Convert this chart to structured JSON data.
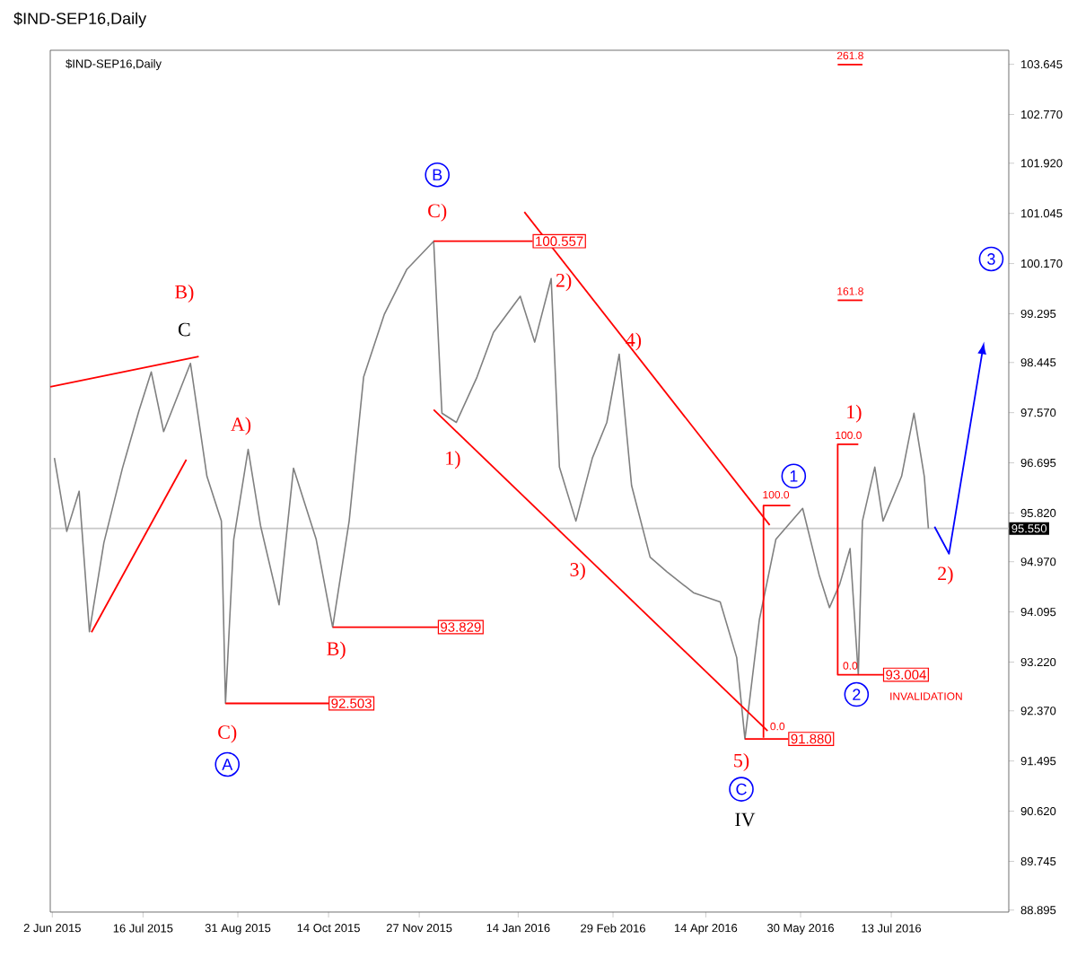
{
  "chart_data": {
    "type": "line",
    "title": "$IND-SEP16,Daily",
    "subtitle": "$IND-SEP16,Daily",
    "xlim": [
      "2015-06-01",
      "2016-09-08"
    ],
    "ylim": [
      88.86,
      103.89
    ],
    "xticks": [
      {
        "value": "2015-06-02",
        "label": "2 Jun 2015"
      },
      {
        "value": "2015-07-16",
        "label": "16 Jul 2015"
      },
      {
        "value": "2015-08-31",
        "label": "31 Aug 2015"
      },
      {
        "value": "2015-10-14",
        "label": "14 Oct 2015"
      },
      {
        "value": "2015-11-27",
        "label": "27 Nov 2015"
      },
      {
        "value": "2016-01-14",
        "label": "14 Jan 2016"
      },
      {
        "value": "2016-02-29",
        "label": "29 Feb 2016"
      },
      {
        "value": "2016-04-14",
        "label": "14 Apr 2016"
      },
      {
        "value": "2016-05-30",
        "label": "30 May 2016"
      },
      {
        "value": "2016-07-13",
        "label": "13 Jul 2016"
      }
    ],
    "yticks": [
      {
        "value": 103.645,
        "label": "103.645"
      },
      {
        "value": 102.77,
        "label": "102.770"
      },
      {
        "value": 101.92,
        "label": "101.920"
      },
      {
        "value": 101.045,
        "label": "101.045"
      },
      {
        "value": 100.17,
        "label": "100.170"
      },
      {
        "value": 99.295,
        "label": "99.295"
      },
      {
        "value": 98.445,
        "label": "98.445"
      },
      {
        "value": 97.57,
        "label": "97.570"
      },
      {
        "value": 96.695,
        "label": "96.695"
      },
      {
        "value": 95.82,
        "label": "95.820"
      },
      {
        "value": 94.97,
        "label": "94.970"
      },
      {
        "value": 94.095,
        "label": "94.095"
      },
      {
        "value": 93.22,
        "label": "93.220"
      },
      {
        "value": 92.37,
        "label": "92.370"
      },
      {
        "value": 91.495,
        "label": "91.495"
      },
      {
        "value": 90.62,
        "label": "90.620"
      },
      {
        "value": 89.745,
        "label": "89.745"
      },
      {
        "value": 88.895,
        "label": "88.895"
      }
    ],
    "ref_lines": [
      {
        "axis": "y",
        "value": 95.55,
        "label": "95.550",
        "color": "#c8c8c8"
      }
    ],
    "series": [
      {
        "color": "#808080",
        "x": [
          "2015-06-03",
          "2015-06-09",
          "2015-06-15",
          "2015-06-20",
          "2015-06-27",
          "2015-07-06",
          "2015-07-14",
          "2015-07-20",
          "2015-07-26",
          "2015-08-08",
          "2015-08-16",
          "2015-08-23",
          "2015-08-25",
          "2015-08-29",
          "2015-09-05",
          "2015-09-11",
          "2015-09-20",
          "2015-09-27",
          "2015-10-08",
          "2015-10-16",
          "2015-10-24",
          "2015-10-31",
          "2015-11-10",
          "2015-11-21",
          "2015-12-04",
          "2015-12-08",
          "2015-12-15",
          "2015-12-25",
          "2016-01-02",
          "2016-01-15",
          "2016-01-22",
          "2016-01-30",
          "2016-02-03",
          "2016-02-11",
          "2016-02-19",
          "2016-02-26",
          "2016-03-03",
          "2016-03-09",
          "2016-03-18",
          "2016-03-26",
          "2016-04-08",
          "2016-04-21",
          "2016-04-29",
          "2016-05-03",
          "2016-05-10",
          "2016-05-18",
          "2016-05-31",
          "2016-06-08",
          "2016-06-13",
          "2016-06-18",
          "2016-06-23",
          "2016-06-27",
          "2016-06-29",
          "2016-07-05",
          "2016-07-09",
          "2016-07-18",
          "2016-07-24",
          "2016-07-29",
          "2016-07-31"
        ],
        "values": [
          96.78,
          95.5,
          96.2,
          93.75,
          95.3,
          96.6,
          97.6,
          98.28,
          97.24,
          98.43,
          96.46,
          95.68,
          92.5,
          95.36,
          96.93,
          95.6,
          94.22,
          96.6,
          95.36,
          93.83,
          95.68,
          98.19,
          99.28,
          100.07,
          100.56,
          97.56,
          97.4,
          98.19,
          98.97,
          99.6,
          98.8,
          99.91,
          96.62,
          95.68,
          96.78,
          97.4,
          98.59,
          96.3,
          95.05,
          94.8,
          94.43,
          94.27,
          93.3,
          91.88,
          93.96,
          95.36,
          95.9,
          94.74,
          94.17,
          94.58,
          95.2,
          93.0,
          95.68,
          96.62,
          95.68,
          96.46,
          97.56,
          96.46,
          95.55
        ]
      },
      {
        "color": "#ff0000",
        "x": [
          "2015-06-01",
          "2015-08-12"
        ],
        "values": [
          98.02,
          98.55
        ]
      },
      {
        "color": "#ff0000",
        "x": [
          "2015-06-21",
          "2015-08-06"
        ],
        "values": [
          93.74,
          96.75
        ]
      },
      {
        "color": "#ff0000",
        "x": [
          "2016-01-17",
          "2016-05-15"
        ],
        "values": [
          101.07,
          95.61
        ]
      },
      {
        "color": "#ff0000",
        "x": [
          "2015-12-04",
          "2016-05-14"
        ],
        "values": [
          97.62,
          92.02
        ]
      },
      {
        "color": "#ff0000",
        "x": [
          "2015-12-04",
          "2016-01-21"
        ],
        "values": [
          100.56,
          100.56
        ]
      },
      {
        "color": "#ff0000",
        "x": [
          "2015-10-16",
          "2015-12-06"
        ],
        "values": [
          93.83,
          93.83
        ]
      },
      {
        "color": "#ff0000",
        "x": [
          "2015-08-25",
          "2015-10-14"
        ],
        "values": [
          92.5,
          92.5
        ]
      },
      {
        "color": "#ff0000",
        "x": [
          "2016-05-03",
          "2016-05-24"
        ],
        "values": [
          91.88,
          91.88
        ]
      },
      {
        "color": "#ff0000",
        "x": [
          "2016-05-25",
          "2016-05-12",
          "2016-05-12"
        ],
        "values": [
          95.95,
          95.95,
          91.9
        ]
      },
      {
        "color": "#ff0000",
        "x": [
          "2016-06-27",
          "2016-06-17",
          "2016-06-17",
          "2016-07-09"
        ],
        "values": [
          97.02,
          97.02,
          93.0,
          93.0
        ]
      },
      {
        "color": "#ff0000",
        "x": [
          "2016-06-17",
          "2016-06-29"
        ],
        "values": [
          99.53,
          99.53
        ]
      },
      {
        "color": "#ff0000",
        "x": [
          "2016-06-17",
          "2016-06-29"
        ],
        "values": [
          103.64,
          103.64
        ]
      }
    ],
    "annotations": [
      {
        "text": "B)",
        "x": "2015-08-12",
        "y": 98.55
      },
      {
        "text": "C",
        "x": "2015-08-12",
        "y": 98.55
      },
      {
        "text": "A)",
        "x": "2015-09-05",
        "y": 96.93
      },
      {
        "text": "C)",
        "x": "2015-08-25",
        "y": 92.5
      },
      "A",
      {
        "text": "B)",
        "x": "2015-10-16",
        "y": 93.83
      },
      "B",
      {
        "text": "C)",
        "x": "2015-12-04",
        "y": 100.56
      },
      {
        "text": "1)",
        "x": "2015-12-08",
        "y": 97.56
      },
      {
        "text": "2)",
        "x": "2016-01-30",
        "y": 99.91
      },
      {
        "text": "3)",
        "x": "2016-02-11",
        "y": 95.68
      },
      {
        "text": "4)",
        "x": "2016-03-03",
        "y": 98.59
      },
      {
        "text": "5)",
        "x": "2016-05-03",
        "y": 91.88
      },
      {
        "text": "C",
        "x": "2016-05-03",
        "y": 91.88
      },
      "IV",
      {
        "text": "1",
        "x": "2016-05-31",
        "y": 95.9
      },
      {
        "text": "2",
        "x": "2016-06-27",
        "y": 93.0
      },
      {
        "text": "1)",
        "x": "2016-06-17",
        "y": 97.02
      },
      "3",
      "2)",
      {
        "text": "100.557",
        "x": "2016-01-21",
        "y": 100.56
      },
      {
        "text": "93.829",
        "x": "2015-12-06",
        "y": 93.83
      },
      {
        "text": "92.503",
        "x": "2015-10-14",
        "y": 92.5
      },
      {
        "text": "91.880",
        "x": "2016-05-24",
        "y": 91.88
      },
      {
        "text": "93.004",
        "x": "2016-07-09",
        "y": 93.0
      },
      {
        "text": "INVALIDATION",
        "x": "2016-07-09",
        "y": 93.0
      },
      {
        "text": "100.0",
        "x": "2016-05-25",
        "y": 95.95
      },
      {
        "text": "0.0",
        "x": "2016-05-24",
        "y": 91.88
      },
      {
        "text": "261.8",
        "x": "2016-06-17",
        "y": 103.64
      },
      {
        "text": "161.8",
        "x": "2016-06-17",
        "y": 99.53
      },
      {
        "text": "100.0",
        "x": "2016-06-17",
        "y": 97.02
      },
      {
        "text": "0.0",
        "x": "2016-06-17",
        "y": 93.0
      }
    ]
  }
}
